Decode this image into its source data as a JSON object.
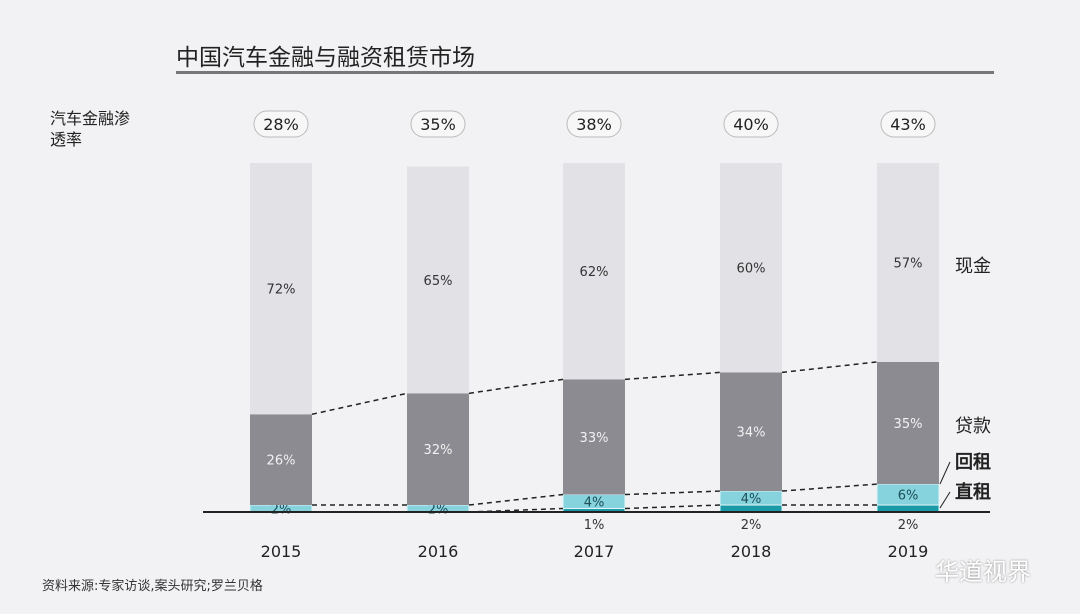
{
  "title": "中国汽车金融与融资租赁市场",
  "penetration_label": "汽车金融渗透率",
  "source": "资料来源:专家访谈,案头研究;罗兰贝格",
  "watermark": "华道视界",
  "chart_data": {
    "type": "bar",
    "stacked": true,
    "title": "中国汽车金融与融资租赁市场",
    "categories": [
      "2015",
      "2016",
      "2017",
      "2018",
      "2019"
    ],
    "penetration": [
      "28%",
      "35%",
      "38%",
      "40%",
      "43%"
    ],
    "series": [
      {
        "name": "直租",
        "values": [
          0,
          0,
          1,
          2,
          2
        ],
        "color": "#1a9aa6"
      },
      {
        "name": "回租",
        "values": [
          2,
          2,
          4,
          4,
          6
        ],
        "color": "#86d2dd"
      },
      {
        "name": "贷款",
        "values": [
          26,
          32,
          33,
          34,
          35
        ],
        "color": "#8b8b91"
      },
      {
        "name": "现金",
        "values": [
          72,
          65,
          62,
          60,
          57
        ],
        "color": "#e2e2e6"
      }
    ],
    "ylim": [
      0,
      100
    ],
    "legend": "right"
  }
}
